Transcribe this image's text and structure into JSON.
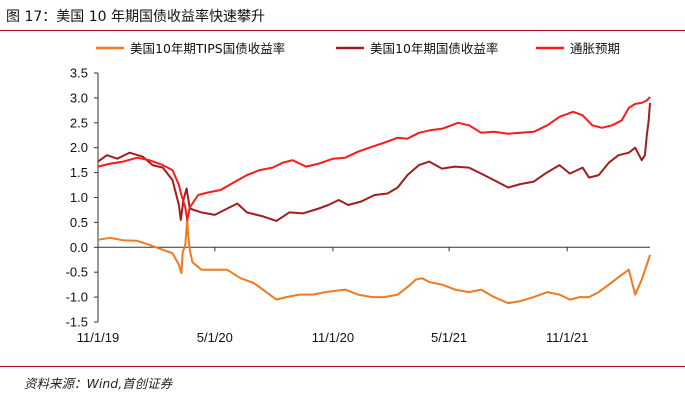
{
  "title": "图 17：美国 10 年期国债收益率快速攀升",
  "source": "资料来源：Wind,首创证券",
  "colors": {
    "accent_rule": "#b3001b"
  },
  "chart_data": {
    "type": "line",
    "x_ticks": [
      "11/1/19",
      "5/1/20",
      "11/1/20",
      "5/1/21",
      "11/1/21"
    ],
    "y_ticks": [
      "3.5",
      "3.0",
      "2.5",
      "2.0",
      "1.5",
      "1.0",
      "0.5",
      "0.0",
      "-0.5",
      "-1.0",
      "-1.5"
    ],
    "ylim": [
      -1.5,
      3.5
    ],
    "xlim": [
      "2019-11-01",
      "2022-03-10"
    ],
    "grid": false,
    "legend_position": "top",
    "series": [
      {
        "name": "美国10年期TIPS国债收益率",
        "color": "#f07a1f",
        "points": [
          [
            "2019-11-01",
            0.15
          ],
          [
            "2019-11-20",
            0.19
          ],
          [
            "2019-12-10",
            0.14
          ],
          [
            "2020-01-01",
            0.13
          ],
          [
            "2020-01-20",
            0.05
          ],
          [
            "2020-02-10",
            -0.05
          ],
          [
            "2020-02-25",
            -0.12
          ],
          [
            "2020-03-06",
            -0.35
          ],
          [
            "2020-03-10",
            -0.52
          ],
          [
            "2020-03-12",
            -0.1
          ],
          [
            "2020-03-16",
            0.05
          ],
          [
            "2020-03-18",
            0.4
          ],
          [
            "2020-03-19",
            0.62
          ],
          [
            "2020-03-20",
            0.3
          ],
          [
            "2020-03-23",
            -0.05
          ],
          [
            "2020-03-27",
            -0.3
          ],
          [
            "2020-04-10",
            -0.45
          ],
          [
            "2020-05-01",
            -0.45
          ],
          [
            "2020-05-20",
            -0.45
          ],
          [
            "2020-06-10",
            -0.62
          ],
          [
            "2020-07-01",
            -0.72
          ],
          [
            "2020-07-20",
            -0.9
          ],
          [
            "2020-08-05",
            -1.05
          ],
          [
            "2020-08-20",
            -1.0
          ],
          [
            "2020-09-10",
            -0.95
          ],
          [
            "2020-10-01",
            -0.95
          ],
          [
            "2020-10-20",
            -0.9
          ],
          [
            "2020-11-01",
            -0.88
          ],
          [
            "2020-11-20",
            -0.85
          ],
          [
            "2020-12-10",
            -0.95
          ],
          [
            "2021-01-01",
            -1.0
          ],
          [
            "2021-01-20",
            -1.0
          ],
          [
            "2021-02-10",
            -0.95
          ],
          [
            "2021-02-25",
            -0.8
          ],
          [
            "2021-03-10",
            -0.65
          ],
          [
            "2021-03-20",
            -0.62
          ],
          [
            "2021-04-01",
            -0.7
          ],
          [
            "2021-04-20",
            -0.75
          ],
          [
            "2021-05-10",
            -0.85
          ],
          [
            "2021-06-01",
            -0.9
          ],
          [
            "2021-06-20",
            -0.85
          ],
          [
            "2021-07-10",
            -1.0
          ],
          [
            "2021-08-01",
            -1.12
          ],
          [
            "2021-08-20",
            -1.08
          ],
          [
            "2021-09-10",
            -1.0
          ],
          [
            "2021-10-01",
            -0.9
          ],
          [
            "2021-10-20",
            -0.95
          ],
          [
            "2021-11-05",
            -1.05
          ],
          [
            "2021-11-20",
            -1.0
          ],
          [
            "2021-12-05",
            -1.0
          ],
          [
            "2021-12-20",
            -0.9
          ],
          [
            "2022-01-05",
            -0.75
          ],
          [
            "2022-01-20",
            -0.6
          ],
          [
            "2022-02-05",
            -0.45
          ],
          [
            "2022-02-15",
            -0.95
          ],
          [
            "2022-02-25",
            -0.65
          ],
          [
            "2022-03-05",
            -0.35
          ],
          [
            "2022-03-10",
            -0.15
          ]
        ]
      },
      {
        "name": "美国10年期国债收益率",
        "color": "#a01e1e",
        "points": [
          [
            "2019-11-01",
            1.72
          ],
          [
            "2019-11-15",
            1.85
          ],
          [
            "2019-12-01",
            1.78
          ],
          [
            "2019-12-20",
            1.9
          ],
          [
            "2020-01-10",
            1.82
          ],
          [
            "2020-01-25",
            1.65
          ],
          [
            "2020-02-10",
            1.6
          ],
          [
            "2020-02-25",
            1.35
          ],
          [
            "2020-03-06",
            0.85
          ],
          [
            "2020-03-09",
            0.55
          ],
          [
            "2020-03-13",
            0.95
          ],
          [
            "2020-03-18",
            1.18
          ],
          [
            "2020-03-23",
            0.78
          ],
          [
            "2020-04-10",
            0.7
          ],
          [
            "2020-05-01",
            0.65
          ],
          [
            "2020-06-05",
            0.88
          ],
          [
            "2020-06-20",
            0.7
          ],
          [
            "2020-07-15",
            0.62
          ],
          [
            "2020-08-05",
            0.53
          ],
          [
            "2020-08-25",
            0.7
          ],
          [
            "2020-09-15",
            0.68
          ],
          [
            "2020-10-10",
            0.78
          ],
          [
            "2020-10-25",
            0.85
          ],
          [
            "2020-11-10",
            0.95
          ],
          [
            "2020-11-25",
            0.85
          ],
          [
            "2020-12-15",
            0.92
          ],
          [
            "2021-01-05",
            1.05
          ],
          [
            "2021-01-25",
            1.08
          ],
          [
            "2021-02-10",
            1.2
          ],
          [
            "2021-02-25",
            1.45
          ],
          [
            "2021-03-15",
            1.65
          ],
          [
            "2021-03-31",
            1.72
          ],
          [
            "2021-04-20",
            1.58
          ],
          [
            "2021-05-10",
            1.62
          ],
          [
            "2021-06-01",
            1.6
          ],
          [
            "2021-06-20",
            1.48
          ],
          [
            "2021-07-10",
            1.35
          ],
          [
            "2021-08-01",
            1.2
          ],
          [
            "2021-08-20",
            1.27
          ],
          [
            "2021-09-10",
            1.32
          ],
          [
            "2021-09-30",
            1.5
          ],
          [
            "2021-10-20",
            1.65
          ],
          [
            "2021-11-05",
            1.48
          ],
          [
            "2021-11-25",
            1.6
          ],
          [
            "2021-12-05",
            1.4
          ],
          [
            "2021-12-20",
            1.45
          ],
          [
            "2022-01-05",
            1.7
          ],
          [
            "2022-01-20",
            1.85
          ],
          [
            "2022-02-05",
            1.9
          ],
          [
            "2022-02-15",
            2.0
          ],
          [
            "2022-02-25",
            1.75
          ],
          [
            "2022-03-02",
            1.85
          ],
          [
            "2022-03-05",
            2.25
          ],
          [
            "2022-03-08",
            2.55
          ],
          [
            "2022-03-10",
            2.9
          ]
        ]
      },
      {
        "name": "通胀预期",
        "color": "#ff1a1a",
        "points": [
          [
            "2019-11-01",
            1.62
          ],
          [
            "2019-11-20",
            1.68
          ],
          [
            "2019-12-10",
            1.72
          ],
          [
            "2020-01-01",
            1.8
          ],
          [
            "2020-01-20",
            1.75
          ],
          [
            "2020-02-10",
            1.65
          ],
          [
            "2020-02-25",
            1.55
          ],
          [
            "2020-03-06",
            1.25
          ],
          [
            "2020-03-10",
            1.05
          ],
          [
            "2020-03-16",
            0.8
          ],
          [
            "2020-03-19",
            0.55
          ],
          [
            "2020-03-23",
            0.8
          ],
          [
            "2020-04-05",
            1.05
          ],
          [
            "2020-04-20",
            1.1
          ],
          [
            "2020-05-10",
            1.15
          ],
          [
            "2020-05-30",
            1.3
          ],
          [
            "2020-06-20",
            1.45
          ],
          [
            "2020-07-10",
            1.55
          ],
          [
            "2020-07-30",
            1.6
          ],
          [
            "2020-08-15",
            1.7
          ],
          [
            "2020-08-30",
            1.75
          ],
          [
            "2020-09-20",
            1.62
          ],
          [
            "2020-10-10",
            1.68
          ],
          [
            "2020-11-01",
            1.78
          ],
          [
            "2020-11-20",
            1.8
          ],
          [
            "2020-12-10",
            1.92
          ],
          [
            "2021-01-01",
            2.02
          ],
          [
            "2021-01-20",
            2.1
          ],
          [
            "2021-02-10",
            2.2
          ],
          [
            "2021-02-25",
            2.18
          ],
          [
            "2021-03-15",
            2.3
          ],
          [
            "2021-04-01",
            2.35
          ],
          [
            "2021-04-20",
            2.38
          ],
          [
            "2021-05-15",
            2.5
          ],
          [
            "2021-06-01",
            2.45
          ],
          [
            "2021-06-20",
            2.3
          ],
          [
            "2021-07-10",
            2.32
          ],
          [
            "2021-08-01",
            2.28
          ],
          [
            "2021-08-20",
            2.3
          ],
          [
            "2021-09-10",
            2.32
          ],
          [
            "2021-10-01",
            2.45
          ],
          [
            "2021-10-20",
            2.62
          ],
          [
            "2021-11-10",
            2.72
          ],
          [
            "2021-11-25",
            2.65
          ],
          [
            "2021-12-10",
            2.45
          ],
          [
            "2021-12-25",
            2.4
          ],
          [
            "2022-01-10",
            2.45
          ],
          [
            "2022-01-25",
            2.55
          ],
          [
            "2022-02-05",
            2.8
          ],
          [
            "2022-02-15",
            2.88
          ],
          [
            "2022-02-25",
            2.9
          ],
          [
            "2022-03-05",
            2.95
          ],
          [
            "2022-03-10",
            3.02
          ]
        ]
      }
    ]
  }
}
